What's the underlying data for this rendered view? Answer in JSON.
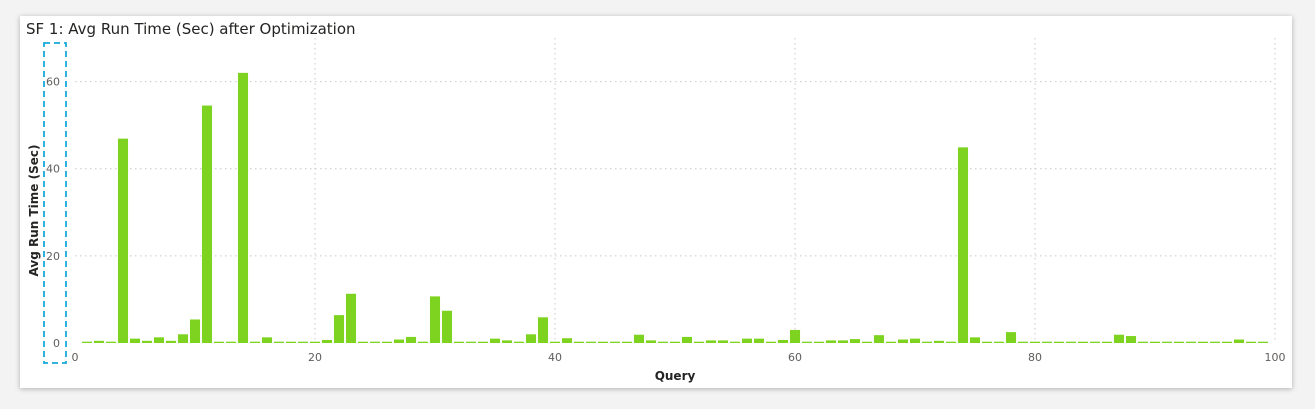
{
  "chart_data": {
    "type": "bar",
    "title": "SF 1: Avg Run Time (Sec) after Optimization",
    "xlabel": "Query",
    "ylabel": "Avg Run Time (Sec)",
    "xlim": [
      0,
      100
    ],
    "ylim": [
      0,
      70
    ],
    "xticks": [
      0,
      20,
      40,
      60,
      80,
      100
    ],
    "yticks": [
      0,
      20,
      40,
      60
    ],
    "grid": true,
    "legend": "none",
    "bar_color": "#7ed321",
    "highlight_color": "#17a9d8",
    "x": [
      1,
      2,
      3,
      4,
      5,
      6,
      7,
      8,
      9,
      10,
      11,
      12,
      13,
      14,
      15,
      16,
      17,
      18,
      19,
      20,
      21,
      22,
      23,
      24,
      25,
      26,
      27,
      28,
      29,
      30,
      31,
      32,
      33,
      34,
      35,
      36,
      37,
      38,
      39,
      40,
      41,
      42,
      43,
      44,
      45,
      46,
      47,
      48,
      49,
      50,
      51,
      52,
      53,
      54,
      55,
      56,
      57,
      58,
      59,
      60,
      61,
      62,
      63,
      64,
      65,
      66,
      67,
      68,
      69,
      70,
      71,
      72,
      73,
      74,
      75,
      76,
      77,
      78,
      79,
      80,
      81,
      82,
      83,
      84,
      85,
      86,
      87,
      88,
      89,
      90,
      91,
      92,
      93,
      94,
      95,
      96,
      97,
      98,
      99
    ],
    "values": [
      0.3,
      0.5,
      0.3,
      46.9,
      1.0,
      0.5,
      1.3,
      0.5,
      2.0,
      5.4,
      54.5,
      0.3,
      0.3,
      62.0,
      0.3,
      1.3,
      0.3,
      0.3,
      0.3,
      0.3,
      0.7,
      6.4,
      11.3,
      0.3,
      0.3,
      0.3,
      0.8,
      1.4,
      0.3,
      10.7,
      7.4,
      0.3,
      0.3,
      0.3,
      1.0,
      0.6,
      0.3,
      2.0,
      5.9,
      0.3,
      1.1,
      0.3,
      0.3,
      0.3,
      0.3,
      0.3,
      1.9,
      0.6,
      0.3,
      0.3,
      1.4,
      0.3,
      0.6,
      0.6,
      0.3,
      1.0,
      1.0,
      0.3,
      0.7,
      3.0,
      0.3,
      0.3,
      0.6,
      0.6,
      0.9,
      0.3,
      1.8,
      0.3,
      0.8,
      1.0,
      0.3,
      0.5,
      0.3,
      44.9,
      1.3,
      0.3,
      0.3,
      2.5,
      0.3,
      0.3,
      0.3,
      0.3,
      0.3,
      0.3,
      0.3,
      0.3,
      1.9,
      1.6,
      0.3,
      0.3,
      0.3,
      0.3,
      0.3,
      0.3,
      0.3,
      0.3,
      0.8,
      0.3,
      0.3
    ]
  }
}
